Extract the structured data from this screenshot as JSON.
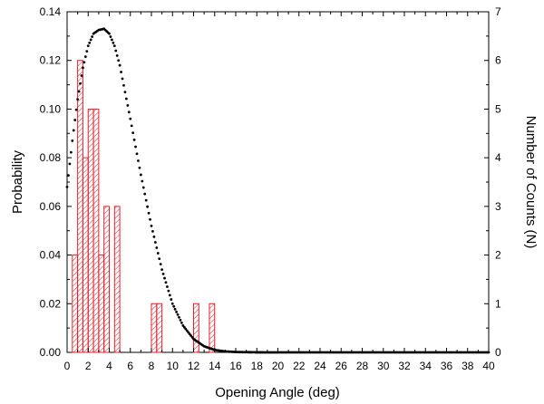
{
  "chart_data": {
    "type": "bar",
    "xlabel": "Opening Angle (deg)",
    "ylabel": "Probability",
    "y2label": "Number of Counts (N)",
    "xlim": [
      0,
      40
    ],
    "ylim": [
      0,
      0.14
    ],
    "y2lim": [
      0,
      7
    ],
    "xticks": [
      "0",
      "2",
      "4",
      "6",
      "8",
      "10",
      "12",
      "14",
      "16",
      "18",
      "20",
      "22",
      "24",
      "26",
      "28",
      "30",
      "32",
      "34",
      "36",
      "38",
      "40"
    ],
    "yticks": [
      "0.00",
      "0.02",
      "0.04",
      "0.06",
      "0.08",
      "0.10",
      "0.12",
      "0.14"
    ],
    "y2ticks": [
      "0",
      "1",
      "2",
      "3",
      "4",
      "5",
      "6",
      "7"
    ],
    "grid": false,
    "histogram": {
      "name": "counts",
      "axis": "right",
      "color": "#e8202a",
      "bin_width": 0.5,
      "bins": [
        {
          "x": 0.5,
          "count": 2
        },
        {
          "x": 1.0,
          "count": 6
        },
        {
          "x": 1.5,
          "count": 4
        },
        {
          "x": 2.0,
          "count": 5
        },
        {
          "x": 2.5,
          "count": 5
        },
        {
          "x": 3.0,
          "count": 2
        },
        {
          "x": 3.5,
          "count": 3
        },
        {
          "x": 4.5,
          "count": 3
        },
        {
          "x": 8.0,
          "count": 1
        },
        {
          "x": 8.5,
          "count": 1
        },
        {
          "x": 12.0,
          "count": 1
        },
        {
          "x": 13.5,
          "count": 1
        }
      ]
    },
    "curve": {
      "name": "probability",
      "axis": "left",
      "style": "dotted",
      "color": "#000000",
      "x": [
        0,
        0.5,
        1,
        1.5,
        2,
        2.5,
        3,
        3.5,
        4,
        4.5,
        5,
        5.5,
        6,
        7,
        8,
        9,
        10,
        11,
        12,
        13,
        14,
        15,
        16,
        18,
        20,
        25,
        30,
        35,
        40
      ],
      "y": [
        0.068,
        0.087,
        0.104,
        0.117,
        0.126,
        0.131,
        0.1325,
        0.133,
        0.131,
        0.126,
        0.118,
        0.107,
        0.096,
        0.073,
        0.052,
        0.034,
        0.02,
        0.011,
        0.0055,
        0.0025,
        0.001,
        0.0004,
        0.00015,
        2e-05,
        0.0,
        0.0,
        0.0,
        0.0,
        0.0
      ]
    }
  }
}
